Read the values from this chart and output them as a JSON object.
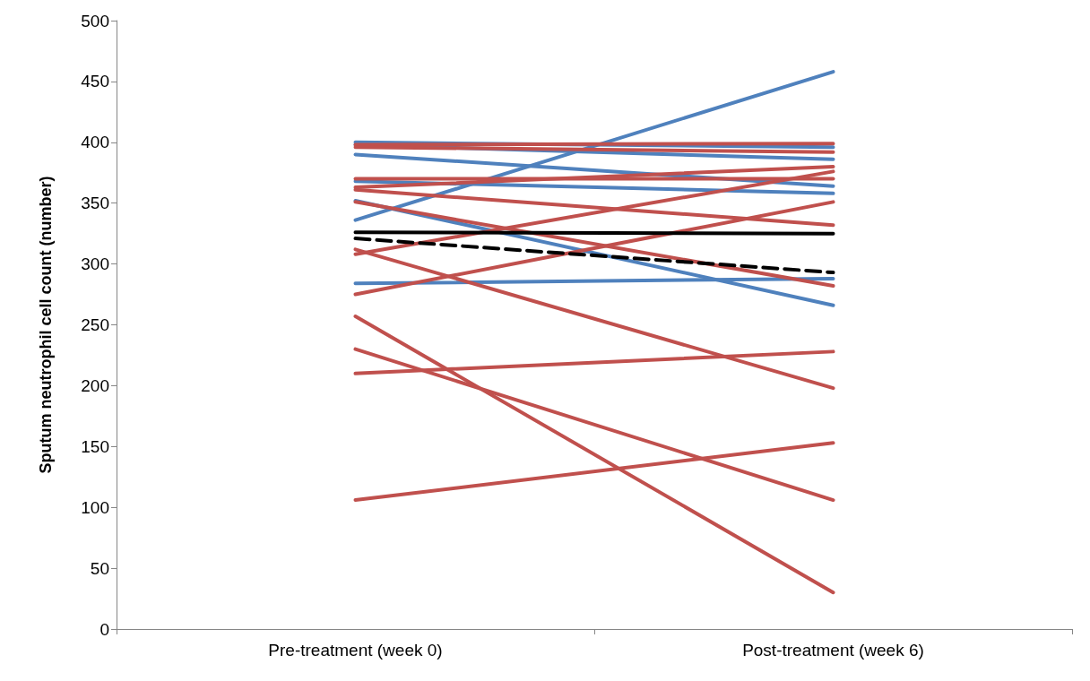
{
  "chart_data": {
    "type": "line",
    "ylabel": "Sputum neutrophil cell count (number)",
    "categories": [
      "Pre-treatment (week 0)",
      "Post-treatment (week 6)"
    ],
    "ylim": [
      0,
      500
    ],
    "yticks": [
      0,
      50,
      100,
      150,
      200,
      250,
      300,
      350,
      400,
      450,
      500
    ],
    "marker": "none",
    "line_style": "solid",
    "series": [
      {
        "color": "#4f81bd",
        "values": [
          336,
          458
        ]
      },
      {
        "color": "#4f81bd",
        "values": [
          400,
          396
        ]
      },
      {
        "color": "#4f81bd",
        "values": [
          398,
          386
        ]
      },
      {
        "color": "#4f81bd",
        "values": [
          390,
          364
        ]
      },
      {
        "color": "#4f81bd",
        "values": [
          368,
          358
        ]
      },
      {
        "color": "#4f81bd",
        "values": [
          352,
          266
        ]
      },
      {
        "color": "#4f81bd",
        "values": [
          284,
          288
        ]
      },
      {
        "color": "#c0504d",
        "values": [
          398,
          399
        ]
      },
      {
        "color": "#c0504d",
        "values": [
          396,
          392
        ]
      },
      {
        "color": "#c0504d",
        "values": [
          363,
          380
        ]
      },
      {
        "color": "#c0504d",
        "values": [
          370,
          370
        ]
      },
      {
        "color": "#c0504d",
        "values": [
          361,
          332
        ]
      },
      {
        "color": "#c0504d",
        "values": [
          351,
          282
        ]
      },
      {
        "color": "#c0504d",
        "values": [
          308,
          376
        ]
      },
      {
        "color": "#c0504d",
        "values": [
          275,
          351
        ]
      },
      {
        "color": "#c0504d",
        "values": [
          312,
          198
        ]
      },
      {
        "color": "#c0504d",
        "values": [
          210,
          228
        ]
      },
      {
        "color": "#c0504d",
        "values": [
          230,
          106
        ]
      },
      {
        "color": "#c0504d",
        "values": [
          257,
          30
        ]
      },
      {
        "color": "#c0504d",
        "values": [
          106,
          153
        ]
      },
      {
        "color": "#000000",
        "values": [
          326,
          325
        ]
      },
      {
        "color": "#000000",
        "values": [
          321,
          293
        ],
        "line_style": "dashed"
      }
    ]
  }
}
